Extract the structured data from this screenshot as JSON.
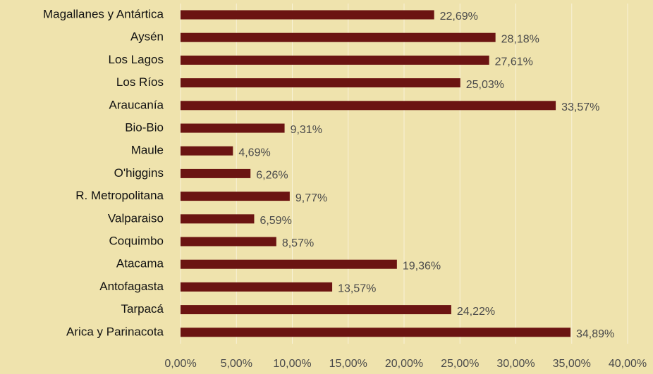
{
  "chart_data": {
    "type": "hbar",
    "categories": [
      "Magallanes y Antártica",
      "Aysén",
      "Los Lagos",
      "Los Ríos",
      "Araucanía",
      "Bio-Bio",
      "Maule",
      "O'higgins",
      "R. Metropolitana",
      "Valparaiso",
      "Coquimbo",
      "Atacama",
      "Antofagasta",
      "Tarpacá",
      "Arica y Parinacota"
    ],
    "values": [
      22.69,
      28.18,
      27.61,
      25.03,
      33.57,
      9.31,
      4.69,
      6.26,
      9.77,
      6.59,
      8.57,
      19.36,
      13.57,
      24.22,
      34.89
    ],
    "value_labels": [
      "22,69%",
      "28,18%",
      "27,61%",
      "25,03%",
      "33,57%",
      "9,31%",
      "4,69%",
      "6,26%",
      "9,77%",
      "6,59%",
      "8,57%",
      "19,36%",
      "13,57%",
      "24,22%",
      "34,89%"
    ],
    "color": "#6b1412",
    "xlim": [
      0,
      40
    ],
    "xticks": [
      {
        "value": 0,
        "label": "0,00%"
      },
      {
        "value": 5,
        "label": "5,00%"
      },
      {
        "value": 10,
        "label": "10,00%"
      },
      {
        "value": 15,
        "label": "15,00%"
      },
      {
        "value": 20,
        "label": "20,00%"
      },
      {
        "value": 25,
        "label": "25,00%"
      },
      {
        "value": 30,
        "label": "30,00%"
      },
      {
        "value": 35,
        "label": "35,00%"
      },
      {
        "value": 40,
        "label": "40,00%"
      }
    ],
    "grid": true
  }
}
